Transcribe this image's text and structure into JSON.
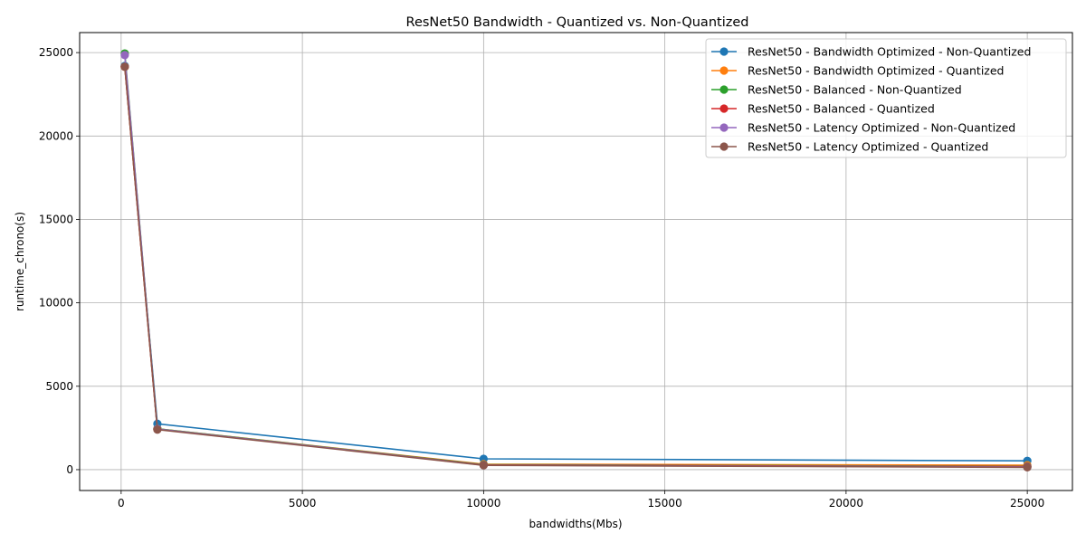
{
  "chart_data": {
    "type": "line",
    "title": "ResNet50 Bandwidth - Quantized vs. Non-Quantized",
    "xlabel": "bandwidths(Mbs)",
    "ylabel": "runtime_chrono(s)",
    "x": [
      100,
      1000,
      10000,
      25000
    ],
    "xlim": [
      -1145,
      26245
    ],
    "ylim": [
      -1250,
      26200
    ],
    "xticks": [
      0,
      5000,
      10000,
      15000,
      20000,
      25000
    ],
    "yticks": [
      0,
      5000,
      10000,
      15000,
      20000,
      25000
    ],
    "grid": true,
    "legend_position": "top-right",
    "marker": "circle",
    "series": [
      {
        "name": "ResNet50 - Bandwidth Optimized - Non-Quantized",
        "color": "#1f77b4",
        "values": [
          24200,
          2750,
          650,
          530
        ]
      },
      {
        "name": "ResNet50 - Bandwidth Optimized - Quantized",
        "color": "#ff7f0e",
        "values": [
          24150,
          2450,
          330,
          270
        ]
      },
      {
        "name": "ResNet50 - Balanced - Non-Quantized",
        "color": "#2ca02c",
        "values": [
          24950,
          2450,
          300,
          200
        ]
      },
      {
        "name": "ResNet50 - Balanced - Quantized",
        "color": "#d62728",
        "values": [
          24150,
          2420,
          280,
          180
        ]
      },
      {
        "name": "ResNet50 - Latency Optimized - Non-Quantized",
        "color": "#9467bd",
        "values": [
          24850,
          2440,
          270,
          160
        ]
      },
      {
        "name": "ResNet50 - Latency Optimized - Quantized",
        "color": "#8c564b",
        "values": [
          24150,
          2400,
          260,
          140
        ]
      }
    ]
  }
}
